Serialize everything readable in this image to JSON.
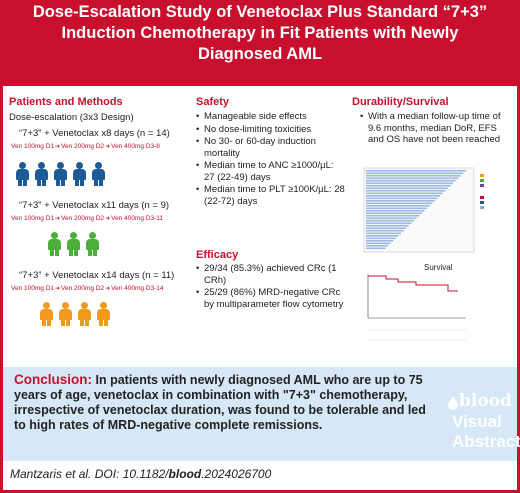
{
  "header": {
    "title_line1": "Dose-Escalation Study of Venetoclax Plus Standard “7+3”",
    "title_line2": "Induction Chemotherapy in Fit Patients with Newly",
    "title_line3": "Diagnosed AML"
  },
  "patients": {
    "title": "Patients and Methods",
    "design": "Dose-escalation (3x3 Design)",
    "cohorts": [
      {
        "label": "“7+3” + Venetoclax x8 days (n = 14)",
        "dose1": "Ven 100mg D1",
        "dose2": "Ven 200mg D2",
        "dose3": "Ven 400mg D3-8",
        "color": "#1e5b96"
      },
      {
        "label": "“7+3” + Venetoclax x11 days (n = 9)",
        "dose1": "Ven 100mg D1",
        "dose2": "Ven 200mg D2",
        "dose3": "Ven 400mg D3-11",
        "color": "#4caf3c"
      },
      {
        "label": "“7+3” + Venetoclax x14 days (n = 11)",
        "dose1": "Ven 100mg D1",
        "dose2": "Ven 200mg D2",
        "dose3": "Ven 400mg D3-14",
        "color": "#f39a1e"
      }
    ]
  },
  "safety": {
    "title": "Safety",
    "items": [
      "Manageable side effects",
      "No dose-limiting toxicities",
      "No 30- or 60-day induction mortality",
      "Median time to ANC ≥1000/µL: 27 (22-49) days",
      "Median time to PLT ≥100K/µL: 28 (22-72) days"
    ]
  },
  "efficacy": {
    "title": "Efficacy",
    "items": [
      "29/34 (85.3%) achieved CRc (1 CRh)",
      "25/29 (86%) MRD-negative CRc by multiparameter flow cytometry"
    ]
  },
  "durability": {
    "title": "Durability/Survival",
    "items": [
      "With a median follow-up time of 9.6 months, median DoR, EFS and OS have not been reached"
    ],
    "survival_label": "Survival"
  },
  "conclusion": {
    "label": "Conclusion:",
    "text": "In patients with newly diagnosed AML who are up to 75 years of age, venetoclax in combination with \"7+3\" chemotherapy, irrespective of venetoclax duration, was found to be tolerable and led to high rates of MRD-negative complete remissions."
  },
  "citation": {
    "authors": "Mantzaris et al. DOI: 10.1182/",
    "journal": "blood",
    "doi_suffix": ".2024026700"
  },
  "logo": {
    "brand": "blood",
    "line1": "Visual",
    "line2": "Abstract"
  },
  "colors": {
    "accent_red": "#c8102e",
    "conclusion_bg": "#d6e7f7",
    "cohort_blue": "#1e5b96",
    "cohort_green": "#4caf3c",
    "cohort_orange": "#f39a1e"
  }
}
